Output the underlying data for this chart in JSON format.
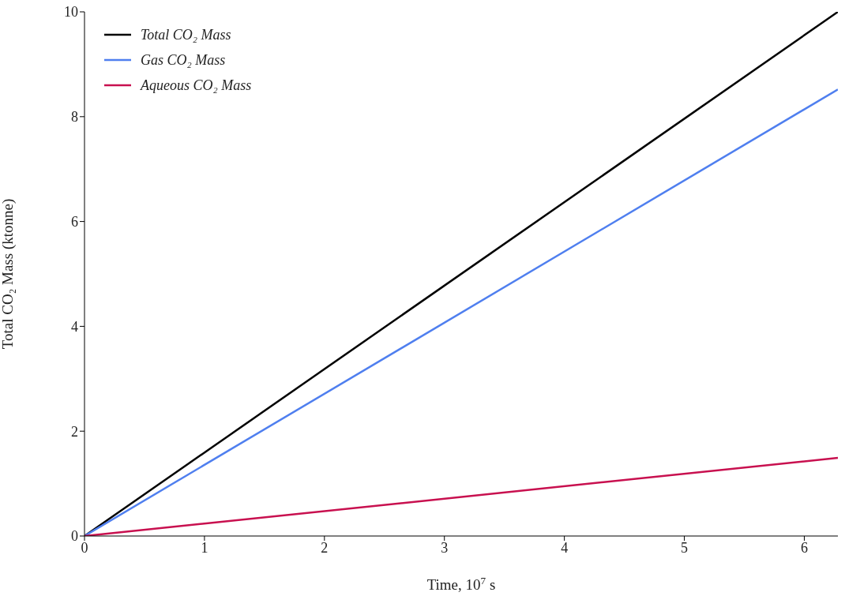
{
  "chart_data": {
    "type": "line",
    "xlabel": "Time, 10$^{7}$ s",
    "ylabel": "Total CO₂ Mass (ktonne)",
    "x": [
      0,
      6.28
    ],
    "series": [
      {
        "name": "Total CO₂ Mass",
        "color": "#000000",
        "values": [
          0,
          10.0
        ]
      },
      {
        "name": "Gas CO₂ Mass",
        "color": "#4f7fef",
        "values": [
          0,
          8.52
        ]
      },
      {
        "name": "Aqueous CO₂ Mass",
        "color": "#c8104f",
        "values": [
          0,
          1.49
        ]
      }
    ],
    "xlim": [
      0,
      6.28
    ],
    "xticks": [
      0,
      1,
      2,
      3,
      4,
      5,
      6
    ],
    "ylim": [
      0,
      10
    ],
    "yticks": [
      0,
      2,
      4,
      6,
      8,
      10
    ],
    "legend": "top left",
    "grid": false
  }
}
